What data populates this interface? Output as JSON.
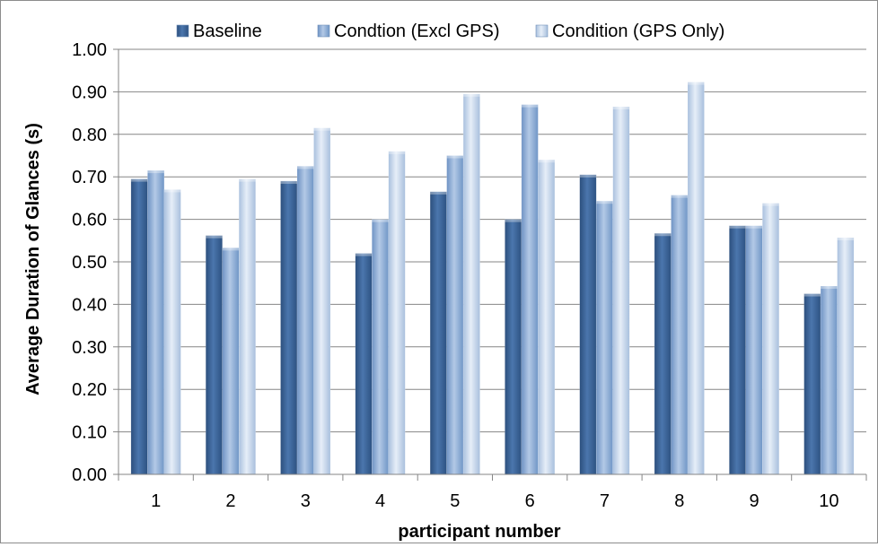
{
  "chart_data": {
    "type": "bar",
    "title": "",
    "xlabel": "participant number",
    "ylabel": "Average Duration of Glances (s)",
    "ylim": [
      0,
      1.0
    ],
    "yticks": [
      "0.00",
      "0.10",
      "0.20",
      "0.30",
      "0.40",
      "0.50",
      "0.60",
      "0.70",
      "0.80",
      "0.90",
      "1.00"
    ],
    "categories": [
      "1",
      "2",
      "3",
      "4",
      "5",
      "6",
      "7",
      "8",
      "9",
      "10"
    ],
    "grid": true,
    "legend_position": "top",
    "series": [
      {
        "name": "Baseline",
        "color": "#3b6397",
        "values": [
          0.695,
          0.562,
          0.69,
          0.52,
          0.665,
          0.6,
          0.705,
          0.567,
          0.585,
          0.425
        ]
      },
      {
        "name": "Condtion (Excl GPS)",
        "color": "#8aa9d2",
        "values": [
          0.715,
          0.533,
          0.725,
          0.6,
          0.75,
          0.87,
          0.643,
          0.657,
          0.585,
          0.443
        ]
      },
      {
        "name": "Condition (GPS Only)",
        "color": "#c6d6ea",
        "values": [
          0.67,
          0.695,
          0.815,
          0.76,
          0.895,
          0.74,
          0.865,
          0.923,
          0.638,
          0.557
        ]
      }
    ]
  }
}
